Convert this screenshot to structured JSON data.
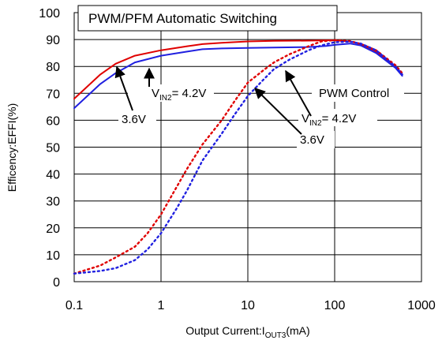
{
  "chart_data": {
    "type": "line",
    "title": "PWM/PFM Automatic Switching",
    "xlabel": "Output Current:I",
    "xlabel_sub": "OUT3",
    "xlabel_suffix": "(mA)",
    "ylabel": "Efficency:EFFI(%)",
    "xscale": "log",
    "xlim": [
      0.1,
      1000
    ],
    "ylim": [
      0,
      100
    ],
    "xticks": [
      "0.1",
      "1",
      "10",
      "100",
      "1000"
    ],
    "yticks": [
      "0",
      "10",
      "20",
      "30",
      "40",
      "50",
      "60",
      "70",
      "80",
      "90",
      "100"
    ],
    "grid": true,
    "series": [
      {
        "mode": "PWM/PFM",
        "vin": "4.2V",
        "color": "#e00000",
        "dash": false,
        "x": [
          0.1,
          0.2,
          0.3,
          0.5,
          1,
          2,
          3,
          5,
          10,
          20,
          50,
          80,
          100,
          150,
          200,
          300,
          500,
          600
        ],
        "y": [
          68,
          77,
          81,
          84,
          86,
          87.5,
          88.3,
          88.8,
          89.3,
          89.5,
          89.6,
          89.7,
          89.7,
          89.3,
          88.3,
          85.5,
          80,
          77
        ]
      },
      {
        "mode": "PWM/PFM",
        "vin": "3.6V",
        "color": "#2020e0",
        "dash": false,
        "x": [
          0.1,
          0.2,
          0.3,
          0.5,
          1,
          2,
          3,
          5,
          10,
          20,
          50,
          80,
          100,
          150,
          200,
          300,
          500,
          600
        ],
        "y": [
          64.5,
          73.5,
          77.5,
          81.5,
          84,
          85.5,
          86.4,
          86.7,
          86.9,
          87,
          87.2,
          87.6,
          88,
          88.5,
          87.8,
          85,
          79.5,
          76.5
        ]
      },
      {
        "mode": "PWM",
        "vin": "4.2V",
        "color": "#e00000",
        "dash": true,
        "x": [
          0.1,
          0.2,
          0.3,
          0.5,
          0.7,
          1,
          1.5,
          2,
          3,
          5,
          7,
          10,
          15,
          20,
          30,
          50,
          70,
          100,
          150,
          200,
          300,
          500,
          600
        ],
        "y": [
          3,
          6,
          9,
          13,
          18,
          25,
          35,
          42,
          51,
          60,
          67,
          74,
          78.5,
          81.5,
          84.5,
          87.5,
          89.3,
          89.8,
          89.4,
          88.4,
          86,
          80.5,
          77.5
        ]
      },
      {
        "mode": "PWM",
        "vin": "3.6V",
        "color": "#2020e0",
        "dash": true,
        "x": [
          0.1,
          0.2,
          0.3,
          0.5,
          0.7,
          1,
          1.5,
          2,
          3,
          5,
          7,
          10,
          15,
          20,
          30,
          50,
          70,
          100,
          150,
          200,
          300,
          500,
          600
        ],
        "y": [
          3,
          4,
          5,
          8,
          12,
          18,
          27,
          34,
          45,
          55,
          62,
          69,
          75,
          79,
          82.5,
          86,
          87.8,
          89,
          89.2,
          88.5,
          86,
          80,
          77
        ]
      }
    ],
    "annotations": [
      {
        "main": "V",
        "sub": "IN2",
        "rest": "= 4.2V"
      },
      {
        "main": "3.6V"
      },
      {
        "main": "PWM Control"
      },
      {
        "main": "V",
        "sub": "IN2",
        "rest": "= 4.2V"
      },
      {
        "main": "3.6V"
      }
    ]
  }
}
